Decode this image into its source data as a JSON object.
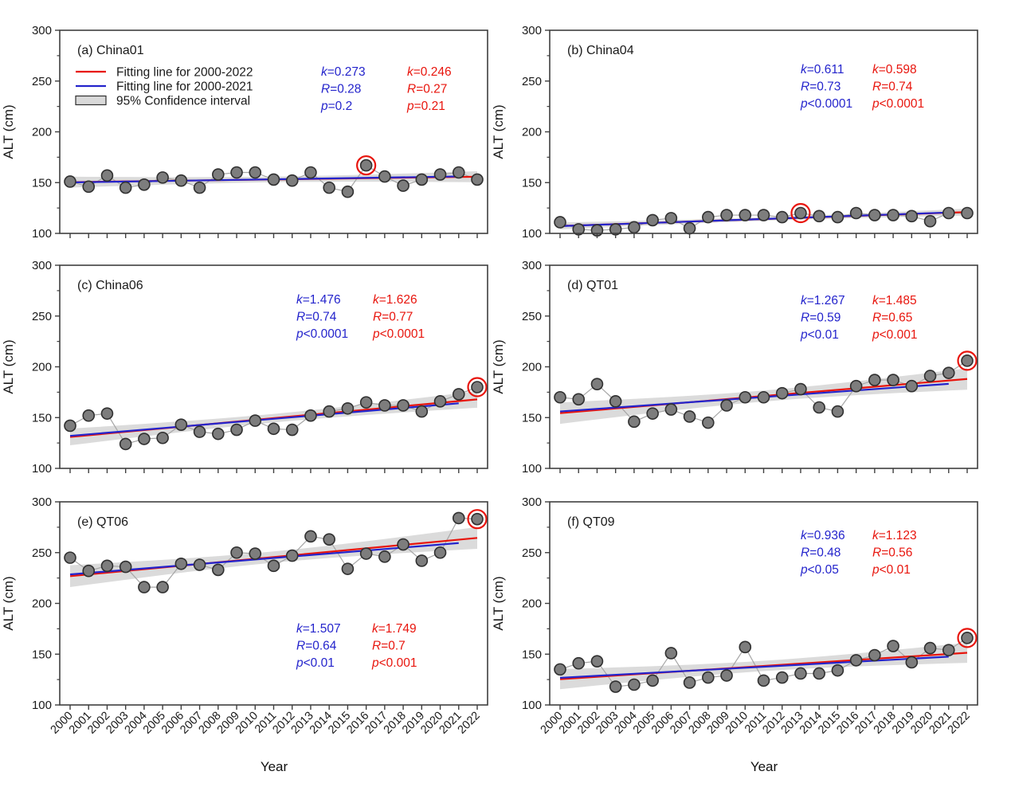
{
  "figure": {
    "xlabel": "Year",
    "ylabel": "ALT (cm)",
    "ylim": [
      100,
      300
    ],
    "yticks": [
      100,
      150,
      200,
      250,
      300
    ],
    "grid": false
  },
  "legend": {
    "position": "upper-left-panel-a",
    "items": [
      {
        "label": "Fitting line for 2000-2022",
        "type": "line",
        "color": "#e8150d"
      },
      {
        "label": "Fitting line for 2000-2021",
        "type": "line",
        "color": "#2424cc"
      },
      {
        "label": "95% Confidence interval",
        "type": "box",
        "color": "#d9d9d9"
      }
    ]
  },
  "colors": {
    "red_line": "#e8150d",
    "blue_line": "#2424cc",
    "red_text": "#e8150d",
    "blue_text": "#2424cc",
    "point_fill": "#7d7d7d",
    "point_stroke": "#303030",
    "connector": "#a6a6a6",
    "ci_fill": "#cccccc",
    "axis": "#3f3f3f",
    "text": "#1a1a1a",
    "circle_marker": "#e8150d"
  },
  "chart_data": {
    "type": "scatter",
    "x": [
      2000,
      2001,
      2002,
      2003,
      2004,
      2005,
      2006,
      2007,
      2008,
      2009,
      2010,
      2011,
      2012,
      2013,
      2014,
      2015,
      2016,
      2017,
      2018,
      2019,
      2020,
      2021,
      2022
    ],
    "xlabel": "Year",
    "ylabel": "ALT (cm)",
    "ylim": [
      100,
      300
    ],
    "panels": [
      {
        "id": "a",
        "title": "(a) China01",
        "site": "China01",
        "values": [
          151,
          146,
          157,
          145,
          148,
          155,
          152,
          145,
          158,
          160,
          160,
          153,
          152,
          160,
          145,
          141,
          167,
          156,
          147,
          153,
          158,
          160,
          153
        ],
        "circled_year": 2016,
        "stats_blue": {
          "k": "0.273",
          "R": "0.28",
          "p_op": "=",
          "p": "0.2"
        },
        "stats_red": {
          "k": "0.246",
          "R": "0.27",
          "p_op": "=",
          "p": "0.21"
        },
        "stats_position": "top",
        "show_legend": true,
        "show_x_labels": false
      },
      {
        "id": "b",
        "title": "(b) China04",
        "site": "China04",
        "values": [
          111,
          104,
          103,
          104,
          106,
          113,
          115,
          105,
          116,
          118,
          118,
          118,
          116,
          120,
          117,
          116,
          120,
          118,
          118,
          117,
          112,
          120,
          120
        ],
        "circled_year": 2013,
        "stats_blue": {
          "k": "0.611",
          "R": "0.73",
          "p_op": "<",
          "p": "0.0001"
        },
        "stats_red": {
          "k": "0.598",
          "R": "0.74",
          "p_op": "<",
          "p": "0.0001"
        },
        "stats_position": "top",
        "show_legend": false,
        "show_x_labels": false
      },
      {
        "id": "c",
        "title": "(c) China06",
        "site": "China06",
        "values": [
          142,
          152,
          154,
          124,
          129,
          130,
          143,
          136,
          134,
          138,
          147,
          139,
          138,
          152,
          156,
          159,
          165,
          162,
          162,
          156,
          166,
          173,
          180
        ],
        "circled_year": 2022,
        "stats_blue": {
          "k": "1.476",
          "R": "0.74",
          "p_op": "<",
          "p": "0.0001"
        },
        "stats_red": {
          "k": "1.626",
          "R": "0.77",
          "p_op": "<",
          "p": "0.0001"
        },
        "stats_position": "top",
        "show_legend": false,
        "show_x_labels": false
      },
      {
        "id": "d",
        "title": "(d) QT01",
        "site": "QT01",
        "values": [
          170,
          168,
          183,
          166,
          146,
          154,
          158,
          151,
          145,
          162,
          170,
          170,
          174,
          178,
          160,
          156,
          181,
          187,
          187,
          181,
          191,
          194,
          206
        ],
        "circled_year": 2022,
        "stats_blue": {
          "k": "1.267",
          "R": "0.59",
          "p_op": "<",
          "p": "0.01"
        },
        "stats_red": {
          "k": "1.485",
          "R": "0.65",
          "p_op": "<",
          "p": "0.001"
        },
        "stats_position": "top",
        "show_legend": false,
        "show_x_labels": false
      },
      {
        "id": "e",
        "title": "(e) QT06",
        "site": "QT06",
        "values": [
          245,
          232,
          237,
          236,
          216,
          216,
          239,
          238,
          233,
          250,
          249,
          237,
          247,
          266,
          263,
          234,
          249,
          246,
          258,
          242,
          250,
          284,
          283
        ],
        "circled_year": 2022,
        "stats_blue": {
          "k": "1.507",
          "R": "0.64",
          "p_op": "<",
          "p": "0.01"
        },
        "stats_red": {
          "k": "1.749",
          "R": "0.7",
          "p_op": "<",
          "p": "0.001"
        },
        "stats_position": "bottom",
        "show_legend": false,
        "show_x_labels": true
      },
      {
        "id": "f",
        "title": "(f) QT09",
        "site": "QT09",
        "values": [
          135,
          141,
          143,
          118,
          120,
          124,
          151,
          122,
          127,
          129,
          157,
          124,
          127,
          131,
          131,
          134,
          144,
          149,
          158,
          142,
          156,
          154,
          166
        ],
        "circled_year": 2022,
        "stats_blue": {
          "k": "0.936",
          "R": "0.48",
          "p_op": "<",
          "p": "0.05"
        },
        "stats_red": {
          "k": "1.123",
          "R": "0.56",
          "p_op": "<",
          "p": "0.01"
        },
        "stats_position": "top",
        "show_legend": false,
        "show_x_labels": true
      }
    ]
  }
}
